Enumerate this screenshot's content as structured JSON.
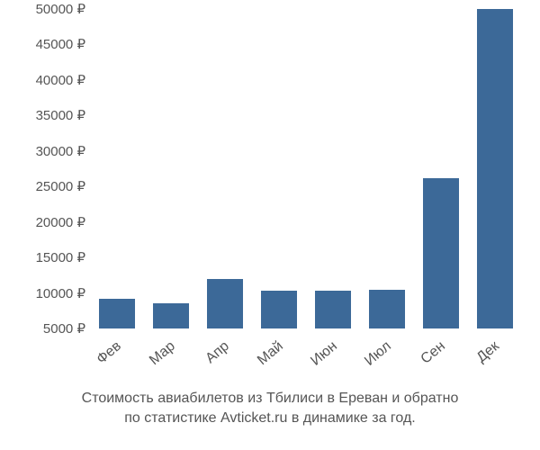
{
  "chart": {
    "type": "bar",
    "background_color": "#ffffff",
    "bar_color": "#3c6998",
    "text_color": "#555555",
    "y_axis": {
      "min": 5000,
      "max": 50000,
      "tick_step": 5000,
      "tick_labels": [
        "5000 ₽",
        "10000 ₽",
        "15000 ₽",
        "20000 ₽",
        "25000 ₽",
        "30000 ₽",
        "35000 ₽",
        "40000 ₽",
        "45000 ₽",
        "50000 ₽"
      ],
      "tick_fontsize": 15
    },
    "x_axis": {
      "categories": [
        "Фев",
        "Мар",
        "Апр",
        "Май",
        "Июн",
        "Июл",
        "Сен",
        "Дек"
      ],
      "label_rotation_deg": -40,
      "label_fontsize": 16
    },
    "values": [
      9200,
      8500,
      12000,
      10300,
      10300,
      10400,
      26200,
      50000
    ],
    "bar_width_ratio": 0.66
  },
  "caption": {
    "line1": "Стоимость авиабилетов из Тбилиси в Ереван и обратно",
    "line2": "по статистике Avticket.ru в динамике за год.",
    "fontsize": 16
  }
}
